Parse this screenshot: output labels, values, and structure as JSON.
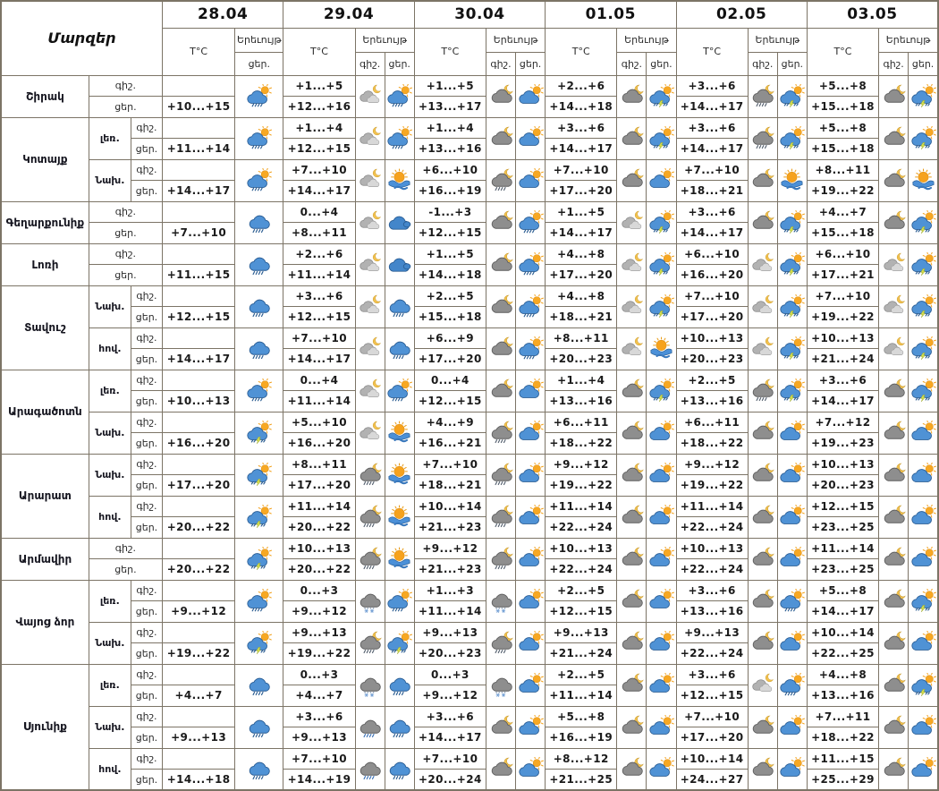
{
  "title_col": "Մարզեր",
  "labels": {
    "temp": "T°C",
    "phenomenon": "Երեւույթ",
    "night": "գիշ.",
    "day": "ցեր."
  },
  "dates": [
    "28.04",
    "29.04",
    "30.04",
    "01.05",
    "02.05",
    "03.05"
  ],
  "colors": {
    "border": "#7c7466",
    "cloud_day": "#4f92d5",
    "cloud_night": "#8e8e8e",
    "sun": "#f7a823",
    "moon": "#f2c14e",
    "lightning": "#d6e04e"
  },
  "icon_legend": {
    "sun-cloud": "partly cloudy day",
    "sun-cloud-rain": "partly cloudy with rain",
    "thunder-day": "rain with thunderstorm",
    "sun-fog": "sun with fog/haze",
    "cloud": "cloudy",
    "cloud-rain": "rain",
    "cloud-rain-gray": "night rain",
    "cloud-sleet": "rain with snow",
    "moon-cloud": "cloudy night",
    "moon-clouds": "partly cloudy night",
    "moon-cloud-rain": "cloudy night with rain"
  },
  "regions": [
    {
      "name": "Շիրակ",
      "rows": [
        {
          "sub": "",
          "cells": [
            {
              "n": "",
              "d": "+10...+15",
              "di": "sun-cloud-rain"
            },
            {
              "n": "+1...+5",
              "d": "+12...+16",
              "ni": "moon-clouds",
              "di": "sun-cloud-rain"
            },
            {
              "n": "+1...+5",
              "d": "+13...+17",
              "ni": "moon-cloud",
              "di": "sun-cloud"
            },
            {
              "n": "+2...+6",
              "d": "+14...+18",
              "ni": "moon-cloud",
              "di": "thunder-day"
            },
            {
              "n": "+3...+6",
              "d": "+14...+17",
              "ni": "moon-cloud-rain",
              "di": "thunder-day"
            },
            {
              "n": "+5...+8",
              "d": "+15...+18",
              "ni": "moon-cloud",
              "di": "thunder-day"
            }
          ]
        }
      ]
    },
    {
      "name": "Կոտայք",
      "rows": [
        {
          "sub": "լեռ.",
          "cells": [
            {
              "n": "",
              "d": "+11...+14",
              "di": "sun-cloud-rain"
            },
            {
              "n": "+1...+4",
              "d": "+12...+15",
              "ni": "moon-clouds",
              "di": "sun-cloud-rain"
            },
            {
              "n": "+1...+4",
              "d": "+13...+16",
              "ni": "moon-cloud",
              "di": "sun-cloud"
            },
            {
              "n": "+3...+6",
              "d": "+14...+17",
              "ni": "moon-cloud",
              "di": "thunder-day"
            },
            {
              "n": "+3...+6",
              "d": "+14...+17",
              "ni": "moon-cloud-rain",
              "di": "thunder-day"
            },
            {
              "n": "+5...+8",
              "d": "+15...+18",
              "ni": "moon-cloud",
              "di": "thunder-day"
            }
          ]
        },
        {
          "sub": "Նախ.",
          "cells": [
            {
              "n": "",
              "d": "+14...+17",
              "di": "sun-cloud-rain"
            },
            {
              "n": "+7...+10",
              "d": "+14...+17",
              "ni": "moon-clouds",
              "di": "sun-fog"
            },
            {
              "n": "+6...+10",
              "d": "+16...+19",
              "ni": "moon-cloud-rain",
              "di": "sun-cloud"
            },
            {
              "n": "+7...+10",
              "d": "+17...+20",
              "ni": "moon-cloud",
              "di": "sun-cloud"
            },
            {
              "n": "+7...+10",
              "d": "+18...+21",
              "ni": "moon-cloud",
              "di": "sun-fog"
            },
            {
              "n": "+8...+11",
              "d": "+19...+22",
              "ni": "moon-cloud",
              "di": "sun-fog"
            }
          ]
        }
      ]
    },
    {
      "name": "Գեղարքունիք",
      "rows": [
        {
          "sub": "",
          "cells": [
            {
              "n": "",
              "d": "+7...+10",
              "di": "cloud-rain"
            },
            {
              "n": "0...+4",
              "d": "+8...+11",
              "ni": "moon-clouds",
              "di": "cloud"
            },
            {
              "n": "-1...+3",
              "d": "+12...+15",
              "ni": "moon-cloud",
              "di": "sun-cloud-rain"
            },
            {
              "n": "+1...+5",
              "d": "+14...+17",
              "ni": "moon-clouds",
              "di": "thunder-day"
            },
            {
              "n": "+3...+6",
              "d": "+14...+17",
              "ni": "moon-cloud",
              "di": "thunder-day"
            },
            {
              "n": "+4...+7",
              "d": "+15...+18",
              "ni": "moon-cloud",
              "di": "thunder-day"
            }
          ]
        }
      ]
    },
    {
      "name": "Լոռի",
      "rows": [
        {
          "sub": "",
          "cells": [
            {
              "n": "",
              "d": "+11...+15",
              "di": "cloud-rain"
            },
            {
              "n": "+2...+6",
              "d": "+11...+14",
              "ni": "moon-clouds",
              "di": "cloud"
            },
            {
              "n": "+1...+5",
              "d": "+14...+18",
              "ni": "moon-cloud",
              "di": "sun-cloud-rain"
            },
            {
              "n": "+4...+8",
              "d": "+17...+20",
              "ni": "moon-clouds",
              "di": "thunder-day"
            },
            {
              "n": "+6...+10",
              "d": "+16...+20",
              "ni": "moon-clouds",
              "di": "thunder-day"
            },
            {
              "n": "+6...+10",
              "d": "+17...+21",
              "ni": "moon-clouds",
              "di": "thunder-day"
            }
          ]
        }
      ]
    },
    {
      "name": "Տավուշ",
      "rows": [
        {
          "sub": "Նախ.",
          "cells": [
            {
              "n": "",
              "d": "+12...+15",
              "di": "cloud-rain"
            },
            {
              "n": "+3...+6",
              "d": "+12...+15",
              "ni": "moon-clouds",
              "di": "cloud-rain"
            },
            {
              "n": "+2...+5",
              "d": "+15...+18",
              "ni": "moon-cloud",
              "di": "sun-cloud-rain"
            },
            {
              "n": "+4...+8",
              "d": "+18...+21",
              "ni": "moon-clouds",
              "di": "thunder-day"
            },
            {
              "n": "+7...+10",
              "d": "+17...+20",
              "ni": "moon-clouds",
              "di": "thunder-day"
            },
            {
              "n": "+7...+10",
              "d": "+19...+22",
              "ni": "moon-clouds",
              "di": "thunder-day"
            }
          ]
        },
        {
          "sub": "հով.",
          "cells": [
            {
              "n": "",
              "d": "+14...+17",
              "di": "cloud-rain"
            },
            {
              "n": "+7...+10",
              "d": "+14...+17",
              "ni": "moon-clouds",
              "di": "cloud-rain"
            },
            {
              "n": "+6...+9",
              "d": "+17...+20",
              "ni": "moon-cloud",
              "di": "sun-cloud-rain"
            },
            {
              "n": "+8...+11",
              "d": "+20...+23",
              "ni": "moon-clouds",
              "di": "sun-fog"
            },
            {
              "n": "+10...+13",
              "d": "+20...+23",
              "ni": "moon-clouds",
              "di": "thunder-day"
            },
            {
              "n": "+10...+13",
              "d": "+21...+24",
              "ni": "moon-clouds",
              "di": "thunder-day"
            }
          ]
        }
      ]
    },
    {
      "name": "Արագածոտն",
      "rows": [
        {
          "sub": "լեռ.",
          "cells": [
            {
              "n": "",
              "d": "+10...+13",
              "di": "sun-cloud-rain"
            },
            {
              "n": "0...+4",
              "d": "+11...+14",
              "ni": "moon-clouds",
              "di": "sun-cloud-rain"
            },
            {
              "n": "0...+4",
              "d": "+12...+15",
              "ni": "moon-cloud",
              "di": "sun-cloud"
            },
            {
              "n": "+1...+4",
              "d": "+13...+16",
              "ni": "moon-cloud",
              "di": "thunder-day"
            },
            {
              "n": "+2...+5",
              "d": "+13...+16",
              "ni": "moon-cloud-rain",
              "di": "thunder-day"
            },
            {
              "n": "+3...+6",
              "d": "+14...+17",
              "ni": "moon-cloud",
              "di": "thunder-day"
            }
          ]
        },
        {
          "sub": "Նախ.",
          "cells": [
            {
              "n": "",
              "d": "+16...+20",
              "di": "thunder-day"
            },
            {
              "n": "+5...+10",
              "d": "+16...+20",
              "ni": "moon-clouds",
              "di": "sun-fog"
            },
            {
              "n": "+4...+9",
              "d": "+16...+21",
              "ni": "moon-cloud-rain",
              "di": "sun-cloud"
            },
            {
              "n": "+6...+11",
              "d": "+18...+22",
              "ni": "moon-cloud",
              "di": "sun-cloud"
            },
            {
              "n": "+6...+11",
              "d": "+18...+22",
              "ni": "moon-cloud",
              "di": "sun-cloud"
            },
            {
              "n": "+7...+12",
              "d": "+19...+23",
              "ni": "moon-cloud",
              "di": "sun-cloud"
            }
          ]
        }
      ]
    },
    {
      "name": "Արարատ",
      "rows": [
        {
          "sub": "Նախ.",
          "cells": [
            {
              "n": "",
              "d": "+17...+20",
              "di": "thunder-day"
            },
            {
              "n": "+8...+11",
              "d": "+17...+20",
              "ni": "moon-cloud-rain",
              "di": "sun-fog"
            },
            {
              "n": "+7...+10",
              "d": "+18...+21",
              "ni": "moon-cloud-rain",
              "di": "sun-cloud"
            },
            {
              "n": "+9...+12",
              "d": "+19...+22",
              "ni": "moon-cloud",
              "di": "sun-cloud"
            },
            {
              "n": "+9...+12",
              "d": "+19...+22",
              "ni": "moon-cloud",
              "di": "sun-cloud"
            },
            {
              "n": "+10...+13",
              "d": "+20...+23",
              "ni": "moon-cloud",
              "di": "sun-cloud"
            }
          ]
        },
        {
          "sub": "հով.",
          "cells": [
            {
              "n": "",
              "d": "+20...+22",
              "di": "thunder-day"
            },
            {
              "n": "+11...+14",
              "d": "+20...+22",
              "ni": "moon-cloud-rain",
              "di": "sun-fog"
            },
            {
              "n": "+10...+14",
              "d": "+21...+23",
              "ni": "moon-cloud-rain",
              "di": "sun-cloud"
            },
            {
              "n": "+11...+14",
              "d": "+22...+24",
              "ni": "moon-cloud",
              "di": "sun-cloud"
            },
            {
              "n": "+11...+14",
              "d": "+22...+24",
              "ni": "moon-cloud",
              "di": "sun-cloud"
            },
            {
              "n": "+12...+15",
              "d": "+23...+25",
              "ni": "moon-cloud",
              "di": "sun-cloud"
            }
          ]
        }
      ]
    },
    {
      "name": "Արմավիր",
      "rows": [
        {
          "sub": "",
          "cells": [
            {
              "n": "",
              "d": "+20...+22",
              "di": "thunder-day"
            },
            {
              "n": "+10...+13",
              "d": "+20...+22",
              "ni": "moon-cloud-rain",
              "di": "sun-fog"
            },
            {
              "n": "+9...+12",
              "d": "+21...+23",
              "ni": "moon-cloud-rain",
              "di": "sun-cloud"
            },
            {
              "n": "+10...+13",
              "d": "+22...+24",
              "ni": "moon-cloud",
              "di": "sun-cloud"
            },
            {
              "n": "+10...+13",
              "d": "+22...+24",
              "ni": "moon-cloud",
              "di": "sun-cloud"
            },
            {
              "n": "+11...+14",
              "d": "+23...+25",
              "ni": "moon-cloud",
              "di": "sun-cloud"
            }
          ]
        }
      ]
    },
    {
      "name": "Վայոց ձոր",
      "rows": [
        {
          "sub": "լեռ.",
          "cells": [
            {
              "n": "",
              "d": "+9...+12",
              "di": "sun-cloud-rain"
            },
            {
              "n": "0...+3",
              "d": "+9...+12",
              "ni": "cloud-sleet",
              "di": "sun-cloud-rain"
            },
            {
              "n": "+1...+3",
              "d": "+11...+14",
              "ni": "cloud-sleet",
              "di": "sun-cloud"
            },
            {
              "n": "+2...+5",
              "d": "+12...+15",
              "ni": "moon-cloud",
              "di": "sun-cloud"
            },
            {
              "n": "+3...+6",
              "d": "+13...+16",
              "ni": "moon-cloud",
              "di": "sun-cloud-rain"
            },
            {
              "n": "+5...+8",
              "d": "+14...+17",
              "ni": "moon-cloud",
              "di": "thunder-day"
            }
          ]
        },
        {
          "sub": "Նախ.",
          "cells": [
            {
              "n": "",
              "d": "+19...+22",
              "di": "thunder-day"
            },
            {
              "n": "+9...+13",
              "d": "+19...+22",
              "ni": "moon-cloud-rain",
              "di": "thunder-day"
            },
            {
              "n": "+9...+13",
              "d": "+20...+23",
              "ni": "moon-cloud-rain",
              "di": "sun-cloud"
            },
            {
              "n": "+9...+13",
              "d": "+21...+24",
              "ni": "moon-cloud",
              "di": "sun-cloud"
            },
            {
              "n": "+9...+13",
              "d": "+22...+24",
              "ni": "moon-cloud",
              "di": "sun-cloud"
            },
            {
              "n": "+10...+14",
              "d": "+22...+25",
              "ni": "moon-cloud",
              "di": "sun-cloud"
            }
          ]
        }
      ]
    },
    {
      "name": "Սյունիք",
      "rows": [
        {
          "sub": "լեռ.",
          "cells": [
            {
              "n": "",
              "d": "+4...+7",
              "di": "cloud-rain"
            },
            {
              "n": "0...+3",
              "d": "+4...+7",
              "ni": "cloud-sleet",
              "di": "cloud-rain"
            },
            {
              "n": "0...+3",
              "d": "+9...+12",
              "ni": "cloud-sleet",
              "di": "sun-cloud"
            },
            {
              "n": "+2...+5",
              "d": "+11...+14",
              "ni": "moon-cloud",
              "di": "sun-cloud"
            },
            {
              "n": "+3...+6",
              "d": "+12...+15",
              "ni": "moon-clouds",
              "di": "sun-cloud-rain"
            },
            {
              "n": "+4...+8",
              "d": "+13...+16",
              "ni": "moon-cloud",
              "di": "thunder-day"
            }
          ]
        },
        {
          "sub": "Նախ.",
          "cells": [
            {
              "n": "",
              "d": "+9...+13",
              "di": "cloud-rain"
            },
            {
              "n": "+3...+6",
              "d": "+9...+13",
              "ni": "cloud-rain-gray",
              "di": "cloud-rain"
            },
            {
              "n": "+3...+6",
              "d": "+14...+17",
              "ni": "moon-cloud",
              "di": "sun-cloud"
            },
            {
              "n": "+5...+8",
              "d": "+16...+19",
              "ni": "moon-cloud",
              "di": "sun-cloud"
            },
            {
              "n": "+7...+10",
              "d": "+17...+20",
              "ni": "moon-cloud",
              "di": "sun-cloud"
            },
            {
              "n": "+7...+11",
              "d": "+18...+22",
              "ni": "moon-cloud",
              "di": "sun-cloud"
            }
          ]
        },
        {
          "sub": "հով.",
          "cells": [
            {
              "n": "",
              "d": "+14...+18",
              "di": "cloud-rain"
            },
            {
              "n": "+7...+10",
              "d": "+14...+19",
              "ni": "cloud-rain-gray",
              "di": "cloud-rain"
            },
            {
              "n": "+7...+10",
              "d": "+20...+24",
              "ni": "moon-cloud",
              "di": "sun-cloud"
            },
            {
              "n": "+8...+12",
              "d": "+21...+25",
              "ni": "moon-cloud",
              "di": "sun-cloud"
            },
            {
              "n": "+10...+14",
              "d": "+24...+27",
              "ni": "moon-cloud",
              "di": "sun-cloud"
            },
            {
              "n": "+11...+15",
              "d": "+25...+29",
              "ni": "moon-cloud",
              "di": "sun-cloud"
            }
          ]
        }
      ]
    }
  ]
}
